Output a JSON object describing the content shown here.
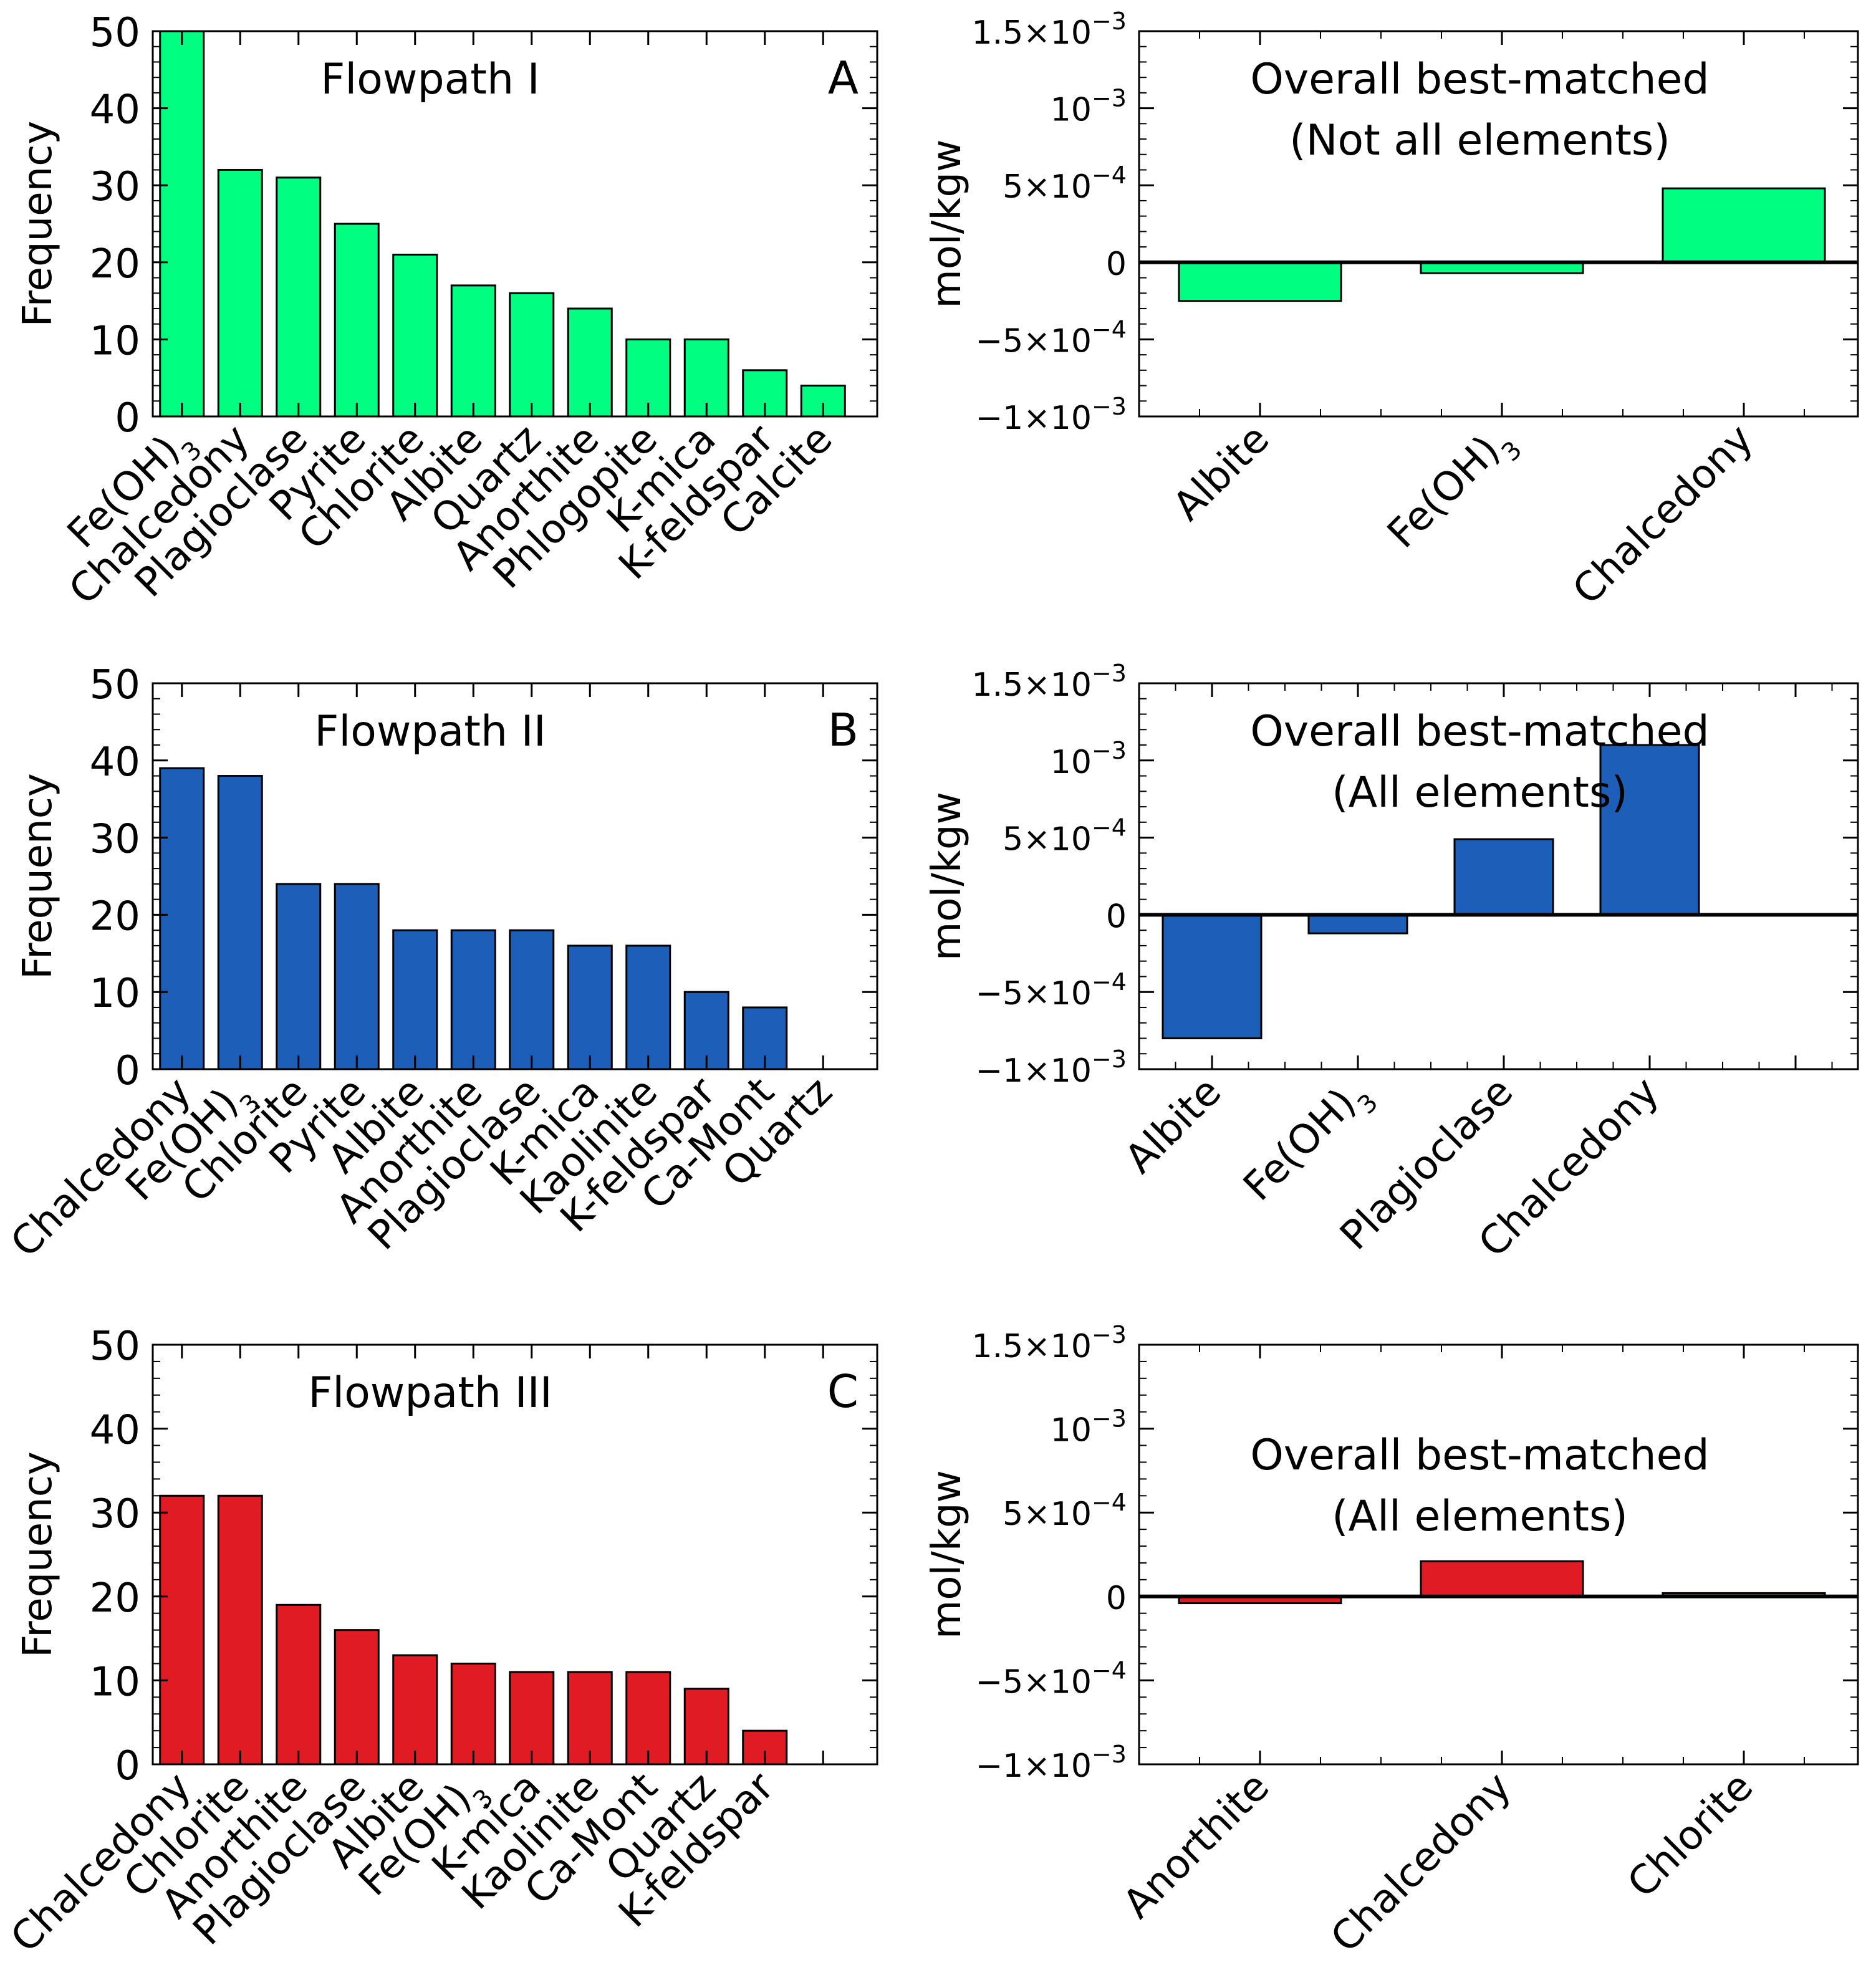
{
  "colors": {
    "green": "#00FF80",
    "blue": "#1C5EB8",
    "red": "#E01B24"
  },
  "chart_data": [
    {
      "type": "bar",
      "panel": "A",
      "title": "Flowpath I",
      "color": "green",
      "ylabel": "Frequency",
      "ylim": [
        0,
        50
      ],
      "yticks": [
        0,
        10,
        20,
        30,
        40,
        50
      ],
      "yticklabels": [
        "0",
        "10",
        "20",
        "30",
        "40",
        "50"
      ],
      "categories": [
        "Fe(OH)3",
        "Chalcedony",
        "Plagioclase",
        "Pyrite",
        "Chlorite",
        "Albite",
        "Quartz",
        "Anorthite",
        "Phlogopite",
        "K-mica",
        "K-feldspar",
        "Calcite"
      ],
      "values": [
        50,
        32,
        31,
        25,
        21,
        17,
        16,
        14,
        10,
        10,
        6,
        4
      ]
    },
    {
      "type": "bar",
      "panel": "A-right",
      "title_lines": [
        "Overall best-matched",
        "(Not all elements)"
      ],
      "color": "green",
      "ylabel": "mol/kgw",
      "ylim": [
        -0.001,
        0.0015
      ],
      "yticks": [
        -0.001,
        -0.0005,
        0,
        0.0005,
        0.001,
        0.0015
      ],
      "yticklabels": [
        [
          "−1×10",
          "−3"
        ],
        [
          "−5×10",
          "−4"
        ],
        [
          "0",
          ""
        ],
        [
          "5×10",
          "−4"
        ],
        [
          "10",
          "−3"
        ],
        [
          "1.5×10",
          "−3"
        ]
      ],
      "categories": [
        "Albite",
        "Fe(OH)3",
        "Chalcedony"
      ],
      "values": [
        -0.00025,
        -7e-05,
        0.00048
      ]
    },
    {
      "type": "bar",
      "panel": "B",
      "title": "Flowpath II",
      "color": "blue",
      "ylabel": "Frequency",
      "ylim": [
        0,
        50
      ],
      "yticks": [
        0,
        10,
        20,
        30,
        40,
        50
      ],
      "yticklabels": [
        "0",
        "10",
        "20",
        "30",
        "40",
        "50"
      ],
      "categories": [
        "Chalcedony",
        "Fe(OH)3",
        "Chlorite",
        "Pyrite",
        "Albite",
        "Anorthite",
        "Plagioclase",
        "K-mica",
        "Kaolinite",
        "K-feldspar",
        "Ca-Mont",
        "Quartz"
      ],
      "values": [
        39,
        38,
        24,
        24,
        18,
        18,
        18,
        16,
        16,
        10,
        8,
        0
      ]
    },
    {
      "type": "bar",
      "panel": "B-right",
      "title_lines": [
        "Overall best-matched",
        "(All elements)"
      ],
      "color": "blue",
      "ylabel": "mol/kgw",
      "ylim": [
        -0.001,
        0.0015
      ],
      "yticks": [
        -0.001,
        -0.0005,
        0,
        0.0005,
        0.001,
        0.0015
      ],
      "yticklabels": [
        [
          "−1×10",
          "−3"
        ],
        [
          "−5×10",
          "−4"
        ],
        [
          "0",
          ""
        ],
        [
          "5×10",
          "−4"
        ],
        [
          "10",
          "−3"
        ],
        [
          "1.5×10",
          "−3"
        ]
      ],
      "categories": [
        "Albite",
        "Fe(OH)3",
        "Plagioclase",
        "Chalcedony"
      ],
      "values": [
        -0.0008,
        -0.00012,
        0.00049,
        0.0011
      ]
    },
    {
      "type": "bar",
      "panel": "C",
      "title": "Flowpath III",
      "color": "red",
      "ylabel": "Frequency",
      "ylim": [
        0,
        50
      ],
      "yticks": [
        0,
        10,
        20,
        30,
        40,
        50
      ],
      "yticklabels": [
        "0",
        "10",
        "20",
        "30",
        "40",
        "50"
      ],
      "categories": [
        "Chalcedony",
        "Chlorite",
        "Anorthite",
        "Plagioclase",
        "Albite",
        "Fe(OH)3",
        "K-mica",
        "Kaolinite",
        "Ca-Mont",
        "Quartz",
        "K-feldspar"
      ],
      "values": [
        32,
        32,
        19,
        16,
        13,
        12,
        11,
        11,
        11,
        9,
        4
      ]
    },
    {
      "type": "bar",
      "panel": "C-right",
      "title_lines": [
        "Overall best-matched",
        "(All elements)"
      ],
      "color": "red",
      "ylabel": "mol/kgw",
      "ylim": [
        -0.001,
        0.0015
      ],
      "yticks": [
        -0.001,
        -0.0005,
        0,
        0.0005,
        0.001,
        0.0015
      ],
      "yticklabels": [
        [
          "−1×10",
          "−3"
        ],
        [
          "−5×10",
          "−4"
        ],
        [
          "0",
          ""
        ],
        [
          "5×10",
          "−4"
        ],
        [
          "10",
          "−3"
        ],
        [
          "1.5×10",
          "−3"
        ]
      ],
      "categories": [
        "Anorthite",
        "Chalcedony",
        "Chlorite"
      ],
      "values": [
        -4e-05,
        0.00021,
        2e-05
      ]
    }
  ]
}
